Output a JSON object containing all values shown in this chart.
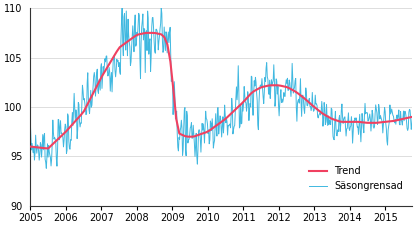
{
  "xlim_start": 2005.0,
  "xlim_end": 2015.75,
  "ylim": [
    90,
    110
  ],
  "yticks": [
    90,
    95,
    100,
    105,
    110
  ],
  "trend_color": "#f04060",
  "seasonal_color": "#40b8e0",
  "trend_label": "Trend",
  "seasonal_label": "Säsongrensad",
  "trend_linewidth": 1.5,
  "seasonal_linewidth": 0.7,
  "background_color": "#ffffff",
  "grid_color": "#d0d0d0",
  "xticks": [
    2005,
    2006,
    2007,
    2008,
    2009,
    2010,
    2011,
    2012,
    2013,
    2014,
    2015
  ],
  "figsize": [
    4.16,
    2.27
  ],
  "dpi": 100
}
